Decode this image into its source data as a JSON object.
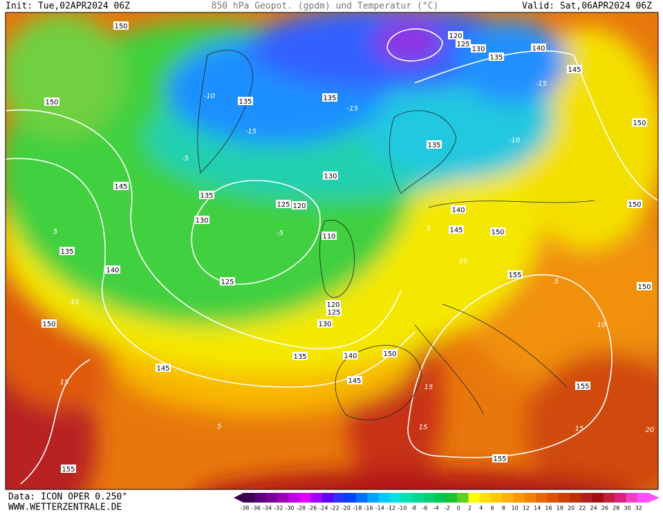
{
  "header": {
    "init": "Init: Tue,02APR2024 06Z",
    "title": "850 hPa Geopot. (gpdm) und Temperatur (°C)",
    "valid": "Valid: Sat,06APR2024 06Z"
  },
  "footer": {
    "model": "Data: ICON OPER 0.250°",
    "site": "WWW.WETTERZENTRALE.DE"
  },
  "geopotential_labels": [
    150,
    150,
    145,
    135,
    140,
    150,
    145,
    155,
    135,
    135,
    135,
    130,
    125,
    120,
    130,
    110,
    125,
    120,
    125,
    130,
    135,
    140,
    150,
    145,
    120,
    125,
    130,
    135,
    140,
    145,
    150,
    135,
    140,
    145,
    150,
    150,
    155,
    150,
    155,
    155
  ],
  "temperature_labels": [
    -10,
    -15,
    -15,
    -5,
    -10,
    -15,
    5,
    10,
    15,
    5,
    -5,
    5,
    10,
    15,
    5,
    10,
    15,
    15,
    20
  ],
  "colorbar": {
    "labels": [
      -38,
      -36,
      -34,
      -32,
      -30,
      -28,
      -26,
      -24,
      -22,
      -20,
      -18,
      -16,
      -14,
      -12,
      -10,
      -8,
      -6,
      -4,
      -2,
      0,
      2,
      4,
      6,
      8,
      10,
      12,
      14,
      16,
      18,
      20,
      22,
      24,
      26,
      28,
      30,
      32
    ],
    "colors": [
      "#3c0050",
      "#5a0078",
      "#7a0098",
      "#9a00b8",
      "#c000e0",
      "#e000ff",
      "#a000ff",
      "#6000ff",
      "#3030ff",
      "#0040ff",
      "#0070ff",
      "#00a0ff",
      "#00c8ff",
      "#00e0e0",
      "#00e0b0",
      "#00d890",
      "#00d070",
      "#00c850",
      "#20c030",
      "#60d020",
      "#ffff00",
      "#ffe000",
      "#ffc800",
      "#ffb000",
      "#f89800",
      "#f08000",
      "#e86800",
      "#e05000",
      "#d04000",
      "#c03000",
      "#b02020",
      "#a01010",
      "#c02040",
      "#e02080",
      "#f040c0",
      "#ff50ff"
    ]
  }
}
